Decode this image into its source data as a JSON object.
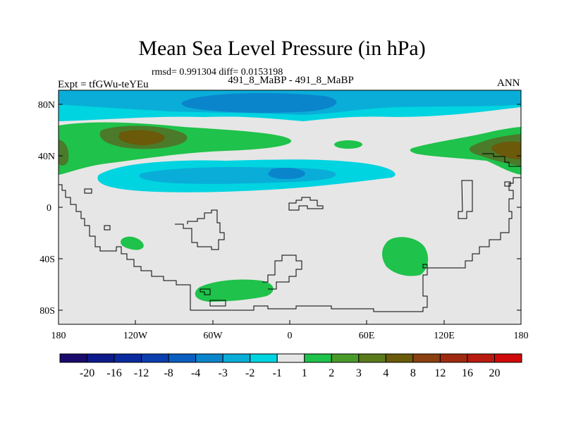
{
  "title": "Mean Sea Level Pressure (in hPa)",
  "stats_line": "rmsd= 0.991304 diff= 0.0153198",
  "case_line": "491_8_MaBP - 491_8_MaBP",
  "expt_label": "Expt = tfGWu-teYEu",
  "season": "ANN",
  "lat_ticks": [
    "80N",
    "40N",
    "0",
    "40S",
    "80S"
  ],
  "lon_ticks": [
    "180",
    "120W",
    "60W",
    "0",
    "60E",
    "120E",
    "180"
  ],
  "colorbar": {
    "labels": [
      "-20",
      "-16",
      "-12",
      "-8",
      "-4",
      "-3",
      "-2",
      "-1",
      "1",
      "2",
      "3",
      "4",
      "8",
      "12",
      "16",
      "20"
    ],
    "colors": [
      "#1a0a6b",
      "#0d1a8c",
      "#0a2aa0",
      "#0a3fb0",
      "#0a5ec0",
      "#0a85cc",
      "#0aadd8",
      "#00d4e0",
      "#e6e6e6",
      "#1fc24a",
      "#4a9a2a",
      "#5a7a1a",
      "#6a5a0a",
      "#8a4010",
      "#a02a10",
      "#b81a10",
      "#d00a0a"
    ]
  },
  "palette": {
    "land_outline": "#000000",
    "neutral": "#e6e6e6",
    "cyan": "#00d4e0",
    "light_blue": "#0aadd8",
    "mid_blue": "#0a85cc",
    "green": "#1fc24a",
    "olive": "#4a7a2a",
    "brown": "#6a5a0a"
  }
}
